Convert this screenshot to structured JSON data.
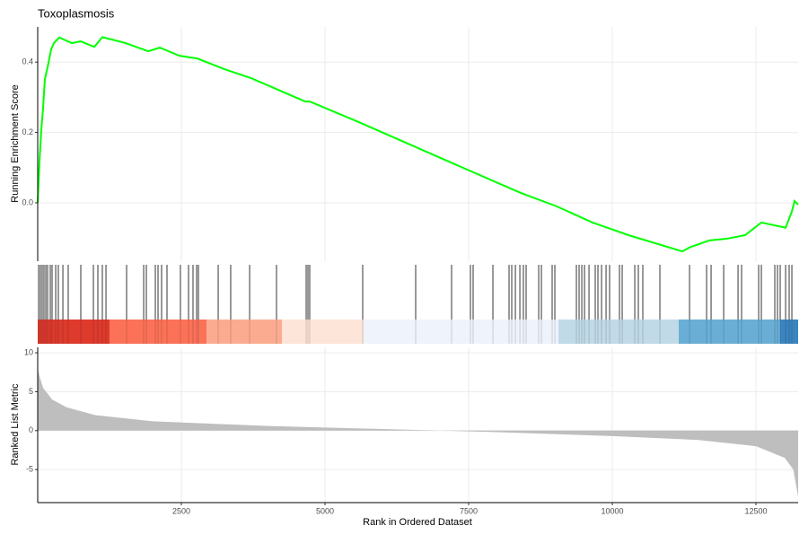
{
  "chart_data": {
    "type": "gsea",
    "title": "Toxoplasmosis",
    "xlabel": "Rank in Ordered Dataset",
    "xlim": [
      0,
      13234
    ],
    "xticks": [
      2500,
      5000,
      7500,
      10000,
      12500
    ],
    "grid": true,
    "score": {
      "ylabel": "Running Enrichment Score",
      "color": "#00ff00",
      "ylim": [
        -0.166,
        0.5
      ],
      "yticks": [
        {
          "value": 0,
          "label": "0.0"
        },
        {
          "value": 0.2,
          "label": "0.2"
        },
        {
          "value": 0.4,
          "label": "0.4"
        }
      ],
      "x": [
        0,
        31,
        62,
        94,
        125,
        172,
        234,
        281,
        375,
        594,
        750,
        984,
        1125,
        1531,
        1922,
        2125,
        2469,
        2781,
        3250,
        3719,
        4656,
        4734,
        5594,
        7156,
        8406,
        9031,
        9656,
        10281,
        11219,
        11344,
        11688,
        12000,
        12313,
        12594,
        13016,
        13125,
        13172,
        13234
      ],
      "values": [
        0,
        0.117,
        0.206,
        0.27,
        0.352,
        0.385,
        0.436,
        0.454,
        0.47,
        0.454,
        0.459,
        0.443,
        0.471,
        0.454,
        0.431,
        0.441,
        0.418,
        0.41,
        0.38,
        0.354,
        0.288,
        0.288,
        0.229,
        0.117,
        0.028,
        -0.01,
        -0.056,
        -0.092,
        -0.138,
        -0.127,
        -0.107,
        -0.102,
        -0.092,
        -0.056,
        -0.071,
        -0.025,
        0.005,
        -0.005
      ]
    },
    "hits": [
      16,
      47,
      78,
      109,
      141,
      172,
      219,
      250,
      313,
      359,
      438,
      531,
      750,
      969,
      1047,
      1125,
      1188,
      1547,
      1844,
      1891,
      2047,
      2094,
      2156,
      2250,
      2484,
      2625,
      2703,
      2766,
      2797,
      3141,
      3359,
      3688,
      4156,
      4672,
      4703,
      4734,
      5656,
      6578,
      7203,
      7531,
      7578,
      7922,
      8203,
      8250,
      8313,
      8391,
      8453,
      8500,
      8719,
      8766,
      8953,
      9000,
      9375,
      9422,
      9469,
      9516,
      9594,
      9703,
      9750,
      9813,
      9891,
      9953,
      10125,
      10172,
      10391,
      10453,
      10531,
      10828,
      11344,
      11641,
      11719,
      11938,
      12188,
      12250,
      12547,
      12594,
      12828,
      12875,
      12922,
      13016,
      13078,
      13125
    ],
    "bands": [
      {
        "start": 0,
        "end": 1250,
        "color": "#de3b2d"
      },
      {
        "start": 1250,
        "end": 2938,
        "color": "#fb7258"
      },
      {
        "start": 2938,
        "end": 4250,
        "color": "#fbac90"
      },
      {
        "start": 4250,
        "end": 5672,
        "color": "#fee5d9"
      },
      {
        "start": 5672,
        "end": 9063,
        "color": "#eef3fc"
      },
      {
        "start": 9063,
        "end": 11156,
        "color": "#c1dae8"
      },
      {
        "start": 11156,
        "end": 12922,
        "color": "#6aaed6"
      },
      {
        "start": 12922,
        "end": 13234,
        "color": "#3a85c0"
      }
    ],
    "metric": {
      "ylabel": "Ranked List Metric",
      "color": "#bebebe",
      "ylim": [
        -9.25,
        10.7
      ],
      "yticks": [
        -5,
        0,
        5,
        10
      ],
      "x": [
        0,
        31,
        94,
        250,
        500,
        1000,
        2000,
        4000,
        6000,
        7000,
        8000,
        10000,
        11500,
        12500,
        13000,
        13150,
        13234
      ],
      "values": [
        8,
        7,
        5.5,
        4,
        3,
        2,
        1.2,
        0.6,
        0.2,
        0,
        -0.2,
        -0.7,
        -1.2,
        -2,
        -3.5,
        -5,
        -8.5
      ]
    }
  }
}
